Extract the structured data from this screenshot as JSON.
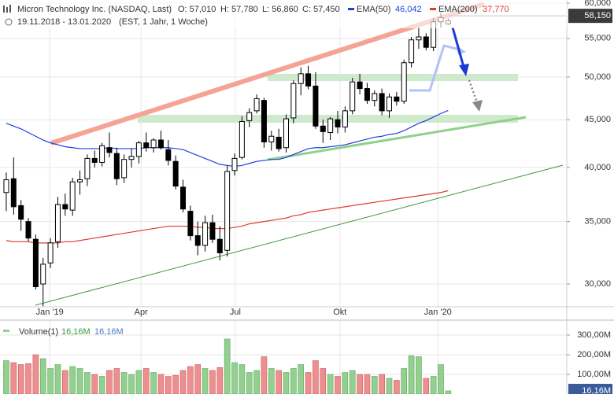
{
  "chart_data": [
    {
      "type": "candlestick",
      "title": "Micron Technology Inc. (NASDAQ, Last)",
      "quote": [
        "O: 57,010",
        "H: 57,780",
        "L: 56,860",
        "C: 57,450"
      ],
      "subtitle": "19.11.2018 - 13.01.2020",
      "subtitle_note": "(EST, 1 Jahr, 1 Woche)",
      "log_scale": true,
      "grid": true,
      "up_color": "#ffffff",
      "down_color": "#000000",
      "ylim": [
        28.36,
        60.47
      ],
      "yticks": [
        {
          "value": 30,
          "label": "30,000"
        },
        {
          "value": 35,
          "label": "35,000"
        },
        {
          "value": 40,
          "label": "40,000"
        },
        {
          "value": 45,
          "label": "45,000"
        },
        {
          "value": 50,
          "label": "50,000"
        },
        {
          "value": 55,
          "label": "55,000"
        },
        {
          "value": 60,
          "label": "60,000"
        }
      ],
      "xlim": [
        -0.85,
        76.1
      ],
      "xticks": [
        {
          "value": 5.9,
          "label": "Jan '19"
        },
        {
          "value": 18.3,
          "label": "Apr"
        },
        {
          "value": 31.1,
          "label": "Jul"
        },
        {
          "value": 45.3,
          "label": "Okt"
        },
        {
          "value": 58.6,
          "label": "Jan '20"
        }
      ],
      "last_price": {
        "value": 58.15,
        "label": "58,150"
      },
      "open": [
        37.6,
        38.9,
        36.4,
        35.0,
        33.5,
        30.0,
        31.6,
        33.3,
        36.5,
        36.0,
        38.6,
        38.9,
        40.9,
        40.5,
        42.0,
        41.4,
        39.0,
        40.8,
        41.1,
        42.5,
        42.0,
        42.8,
        41.8,
        40.6,
        38.1,
        35.9,
        33.8,
        33.0,
        34.9,
        33.5,
        32.6,
        39.7,
        41.0,
        44.9,
        46.0,
        47.2,
        42.6,
        43.1,
        42.0,
        45.2,
        49.2,
        50.4,
        48.9,
        44.3,
        43.6,
        45.0,
        44.2,
        46.0,
        49.4,
        48.6,
        47.2,
        48.0,
        46.0,
        47.6,
        47.1,
        51.8,
        54.8,
        55.2,
        53.8,
        57.3,
        57.01
      ],
      "high": [
        39.5,
        41.0,
        36.9,
        35.3,
        33.9,
        32.0,
        33.6,
        37.2,
        37.5,
        39.0,
        39.7,
        41.3,
        41.7,
        42.5,
        43.6,
        42.0,
        41.3,
        41.9,
        42.7,
        43.6,
        43.0,
        43.8,
        42.8,
        41.2,
        38.8,
        36.4,
        35.0,
        35.5,
        35.6,
        34.6,
        40.2,
        41.4,
        45.4,
        46.3,
        47.9,
        47.5,
        43.8,
        44.0,
        45.6,
        49.6,
        51.2,
        51.4,
        50.6,
        45.0,
        45.3,
        46.0,
        46.5,
        49.9,
        50.4,
        49.3,
        48.4,
        48.6,
        48.0,
        48.2,
        52.2,
        55.2,
        56.5,
        55.7,
        57.8,
        58.6,
        57.78
      ],
      "low": [
        35.9,
        35.6,
        34.2,
        33.3,
        29.6,
        28.4,
        31.2,
        32.8,
        35.5,
        35.5,
        37.4,
        38.2,
        40.0,
        40.1,
        41.0,
        38.3,
        38.5,
        40.0,
        40.4,
        41.6,
        41.5,
        41.8,
        40.2,
        37.9,
        35.8,
        33.4,
        32.2,
        32.5,
        33.2,
        31.8,
        32.1,
        39.2,
        40.8,
        44.2,
        45.7,
        42.0,
        41.7,
        41.6,
        41.5,
        44.6,
        47.8,
        48.5,
        44.0,
        42.5,
        42.8,
        43.5,
        43.6,
        45.6,
        47.9,
        46.8,
        46.5,
        45.5,
        45.2,
        46.6,
        46.8,
        51.2,
        53.6,
        53.4,
        53.3,
        56.5,
        56.86
      ],
      "close": [
        38.8,
        36.3,
        35.2,
        33.6,
        29.8,
        31.5,
        33.2,
        36.5,
        36.1,
        38.6,
        38.8,
        40.9,
        40.5,
        42.2,
        41.5,
        38.9,
        40.8,
        41.1,
        42.5,
        42.0,
        42.8,
        42.0,
        40.7,
        38.2,
        36.1,
        33.8,
        33.0,
        34.9,
        33.5,
        32.4,
        39.6,
        40.9,
        44.8,
        45.8,
        47.4,
        42.6,
        43.2,
        41.9,
        45.1,
        49.2,
        50.4,
        48.9,
        44.3,
        43.7,
        45.1,
        44.2,
        46.0,
        49.4,
        48.6,
        47.2,
        48.0,
        46.0,
        47.6,
        47.1,
        51.8,
        54.8,
        55.2,
        53.8,
        57.3,
        57.9,
        57.45
      ],
      "series": [
        {
          "name": "EMA(50)",
          "color": "#1f3fe0",
          "current_label": "46,042",
          "values": [
            44.6,
            44.3,
            44.0,
            43.6,
            43.2,
            42.8,
            42.5,
            42.3,
            42.1,
            42.0,
            41.9,
            41.9,
            41.9,
            41.9,
            42.0,
            41.9,
            41.9,
            41.9,
            41.9,
            42.0,
            42.0,
            42.0,
            42.0,
            41.9,
            41.8,
            41.5,
            41.2,
            40.9,
            40.6,
            40.3,
            40.2,
            40.1,
            40.2,
            40.4,
            40.6,
            40.7,
            40.8,
            40.8,
            41.0,
            41.3,
            41.6,
            41.9,
            42.0,
            42.0,
            42.1,
            42.2,
            42.3,
            42.5,
            42.7,
            42.9,
            43.1,
            43.2,
            43.4,
            43.5,
            43.8,
            44.2,
            44.6,
            44.9,
            45.3,
            45.7,
            46.042
          ]
        },
        {
          "name": "EMA(200)",
          "color": "#e03a2a",
          "current_label": "37,770",
          "values": [
            33.4,
            33.3,
            33.3,
            33.3,
            33.2,
            33.2,
            33.2,
            33.2,
            33.3,
            33.3,
            33.4,
            33.5,
            33.6,
            33.7,
            33.8,
            33.9,
            34.0,
            34.1,
            34.2,
            34.3,
            34.4,
            34.5,
            34.6,
            34.6,
            34.6,
            34.6,
            34.5,
            34.5,
            34.4,
            34.4,
            34.4,
            34.5,
            34.6,
            34.8,
            34.9,
            35.0,
            35.1,
            35.2,
            35.3,
            35.5,
            35.6,
            35.8,
            35.9,
            36.0,
            36.1,
            36.2,
            36.3,
            36.4,
            36.5,
            36.6,
            36.7,
            36.8,
            36.9,
            37.0,
            37.1,
            37.2,
            37.3,
            37.4,
            37.5,
            37.6,
            37.77
          ]
        }
      ]
    },
    {
      "type": "bar",
      "name": "Volume(1)",
      "legend_values": [
        "16,16M",
        "16,16M"
      ],
      "up_color": "#93cf8e",
      "down_color": "#ee8f8f",
      "ylim": [
        0,
        364
      ],
      "yticks": [
        {
          "value": 100,
          "label": "100,00M"
        },
        {
          "value": 200,
          "label": "200,00M"
        },
        {
          "value": 300,
          "label": "300,00M"
        }
      ],
      "last_value": {
        "value": 16.16,
        "label": "16,16M"
      },
      "values": [
        170,
        160,
        150,
        155,
        200,
        180,
        130,
        150,
        120,
        140,
        130,
        110,
        100,
        90,
        120,
        130,
        110,
        100,
        120,
        130,
        110,
        100,
        90,
        95,
        120,
        140,
        150,
        130,
        120,
        135,
        280,
        160,
        150,
        110,
        120,
        190,
        130,
        120,
        110,
        130,
        150,
        110,
        170,
        130,
        100,
        90,
        110,
        120,
        100,
        100,
        90,
        100,
        80,
        70,
        130,
        195,
        190,
        80,
        90,
        150,
        16.16
      ]
    }
  ]
}
